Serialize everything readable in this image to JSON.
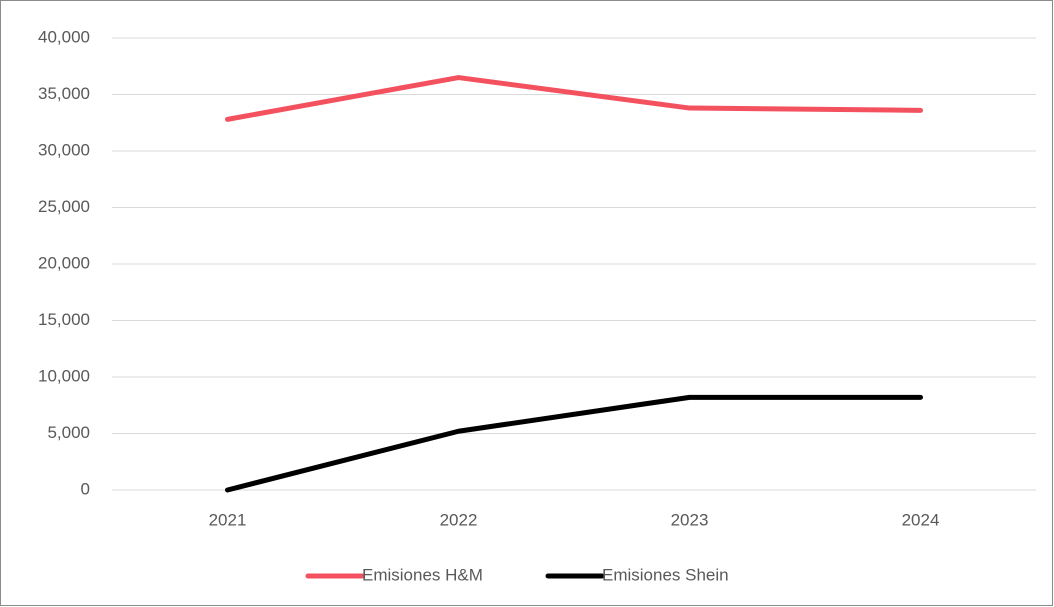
{
  "chart_data": {
    "type": "line",
    "categories": [
      "2021",
      "2022",
      "2023",
      "2024"
    ],
    "series": [
      {
        "name": "Emisiones H&M",
        "color": "#f4515f",
        "values": [
          32800,
          36500,
          33800,
          33600
        ]
      },
      {
        "name": "Emisiones Shein",
        "color": "#000000",
        "values": [
          0,
          5200,
          8200,
          8200
        ]
      }
    ],
    "ylim": [
      0,
      40000
    ],
    "yticks": [
      0,
      {
        "value": 5000,
        "label": "5,000"
      },
      {
        "value": 10000,
        "label": "10,000"
      },
      {
        "value": 15000,
        "label": "15,000"
      },
      {
        "value": 20000,
        "label": "20,000"
      },
      {
        "value": 25000,
        "label": "25,000"
      },
      {
        "value": 30000,
        "label": "30,000"
      },
      {
        "value": 35000,
        "label": "35,000"
      },
      {
        "value": 40000,
        "label": "40,000"
      }
    ],
    "grid": true,
    "legend": "bottom"
  }
}
